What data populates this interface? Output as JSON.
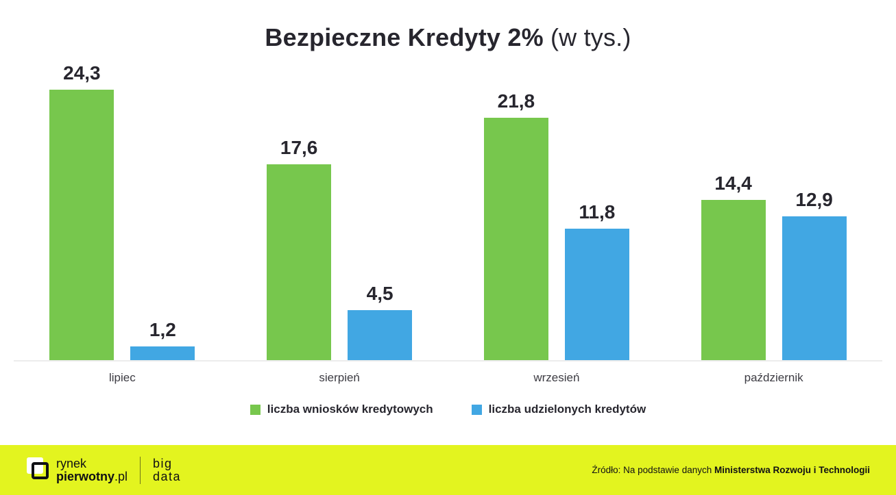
{
  "title": {
    "main": "Bezpieczne Kredyty 2%",
    "suffix": " (w tys.)"
  },
  "chart_data": {
    "type": "bar",
    "title": "Bezpieczne Kredyty 2% (w tys.)",
    "categories": [
      "lipiec",
      "sierpień",
      "wrzesień",
      "październik"
    ],
    "series": [
      {
        "key": "wnioski",
        "name": "liczba wniosków kredytowych",
        "color": "#77c74d",
        "values": [
          24.3,
          17.6,
          21.8,
          14.4
        ],
        "labels": [
          "24,3",
          "17,6",
          "21,8",
          "14,4"
        ]
      },
      {
        "key": "udzielone",
        "name": "liczba udzielonych kredytów",
        "color": "#41a7e3",
        "values": [
          1.2,
          4.5,
          11.8,
          12.9
        ],
        "labels": [
          "1,2",
          "4,5",
          "11,8",
          "12,9"
        ]
      }
    ],
    "ylim": [
      0,
      26
    ],
    "grid": false,
    "legend_position": "bottom",
    "value_label_decimal": "comma"
  },
  "footer": {
    "logo": {
      "line1": "rynek",
      "line2_bold": "pierwotny",
      "line2_suffix": ".pl"
    },
    "brand2": {
      "line1": "big",
      "line2": "data"
    },
    "source_prefix": "Źródło: Na podstawie danych ",
    "source_bold": "Ministerstwa Rozwoju i Technologii"
  },
  "colors": {
    "green": "#77c74d",
    "blue": "#41a7e3",
    "footer_bg": "#e3f41f",
    "text_dark": "#27262e"
  }
}
